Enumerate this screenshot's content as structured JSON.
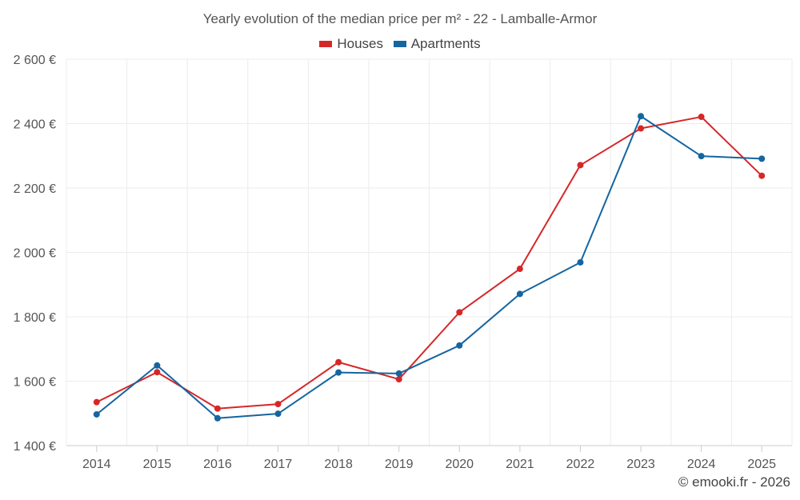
{
  "chart_data": {
    "type": "line",
    "title": "Yearly evolution of the median price per m² - 22 - Lamballe-Armor",
    "categories": [
      "2014",
      "2015",
      "2016",
      "2017",
      "2018",
      "2019",
      "2020",
      "2021",
      "2022",
      "2023",
      "2024",
      "2025"
    ],
    "series": [
      {
        "name": "Houses",
        "color": "#d62728",
        "values": [
          1535,
          1628,
          1515,
          1529,
          1659,
          1606,
          1814,
          1949,
          2271,
          2385,
          2421,
          2238
        ]
      },
      {
        "name": "Apartments",
        "color": "#1565a0",
        "values": [
          1497,
          1649,
          1485,
          1499,
          1627,
          1624,
          1711,
          1871,
          1969,
          2423,
          2299,
          2291
        ]
      }
    ],
    "ylim": [
      1400,
      2600
    ],
    "yticks": [
      1400,
      1600,
      1800,
      2000,
      2200,
      2400,
      2600
    ],
    "ytick_labels": [
      "1 400 €",
      "1 600 €",
      "1 800 €",
      "2 000 €",
      "2 200 €",
      "2 400 €",
      "2 600 €"
    ],
    "xlabel": "",
    "ylabel": "",
    "grid": true,
    "legend": "top-center"
  },
  "credit": "© emooki.fr - 2026"
}
